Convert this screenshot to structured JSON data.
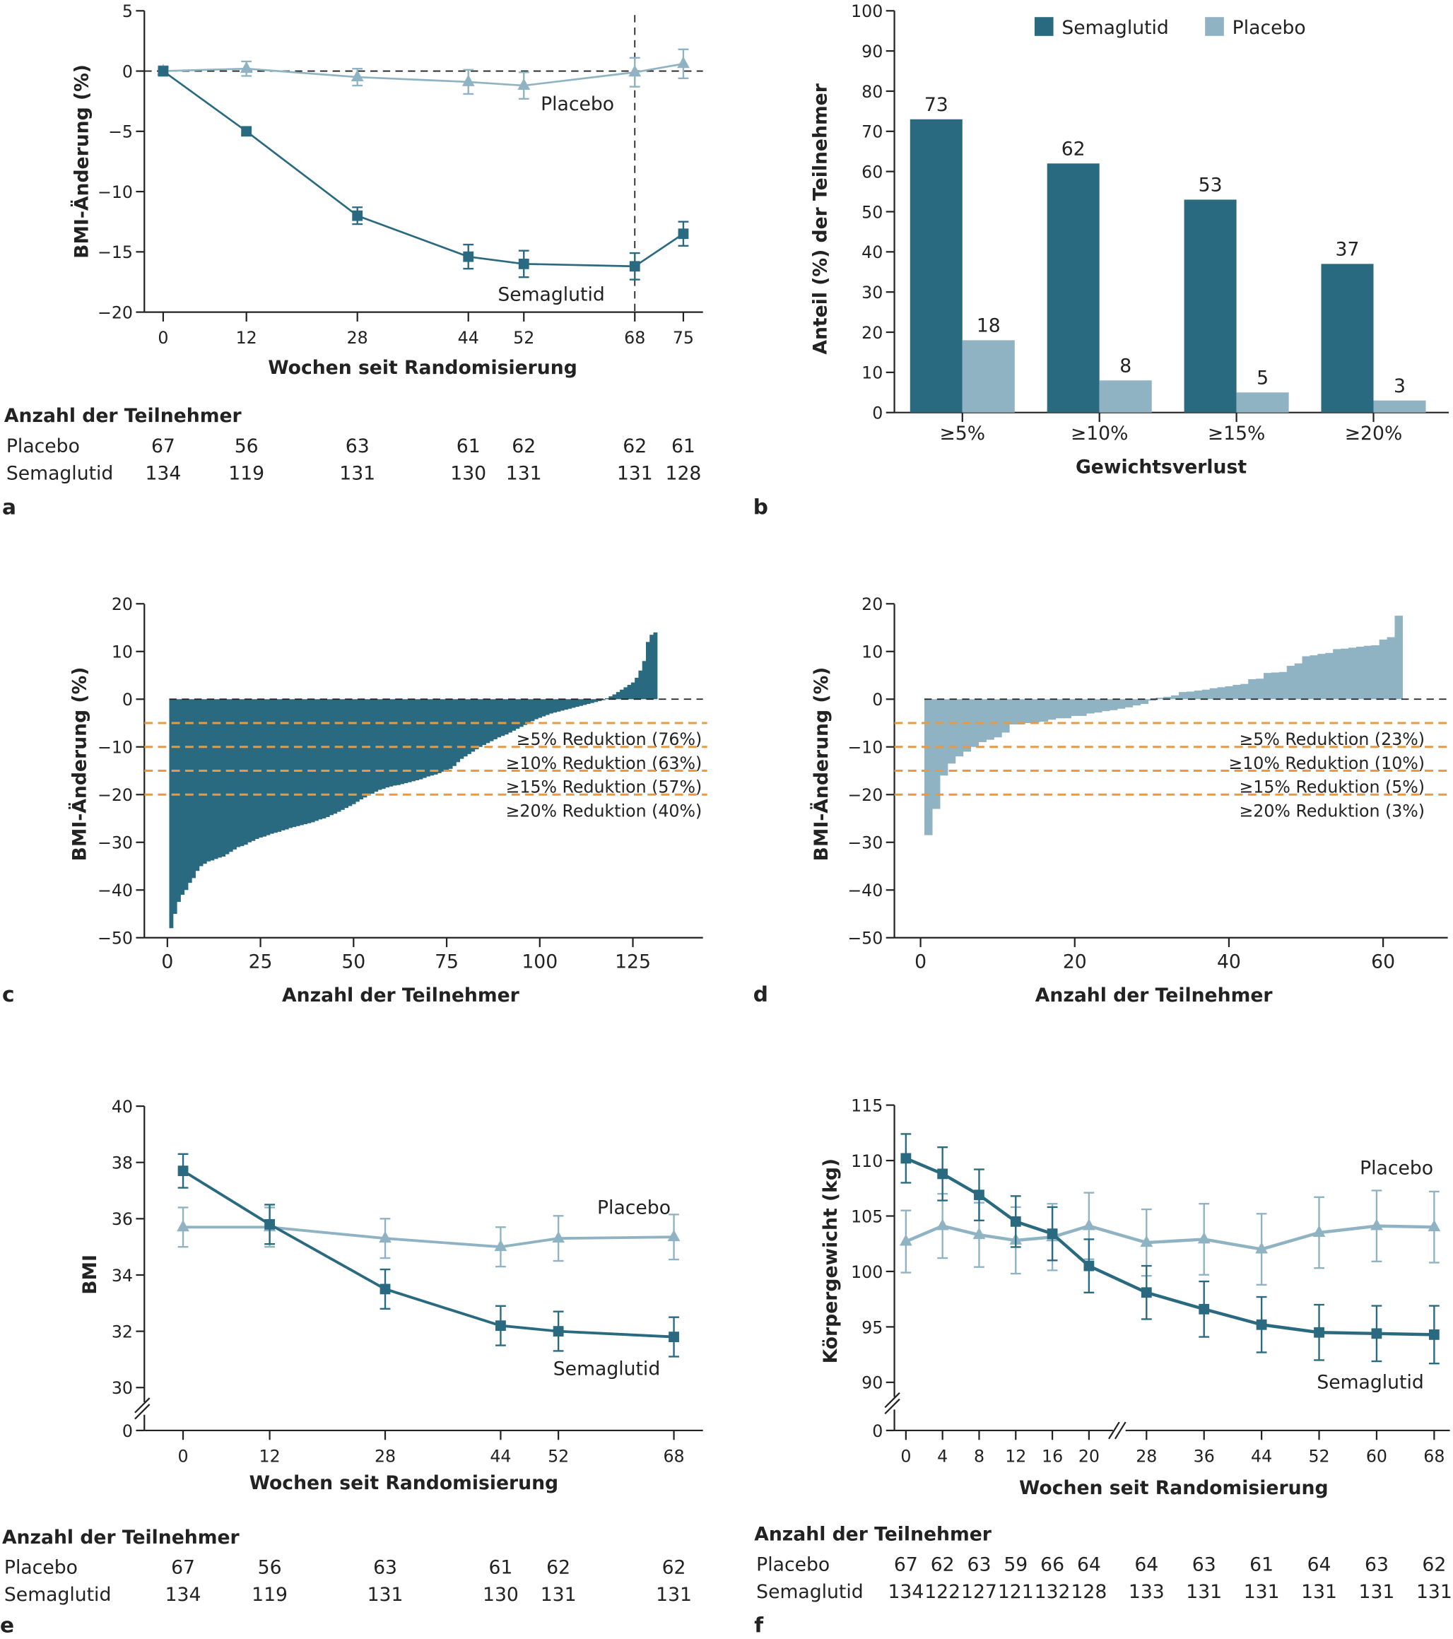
{
  "colors": {
    "semaglutid": "#2a6a80",
    "placebo": "#8fb3c3",
    "threshold": "#e89a3c",
    "axis": "#222222"
  },
  "chart_data": [
    {
      "panel": "a",
      "type": "line",
      "xlabel": "Wochen seit Randomisierung",
      "ylabel": "BMI-Änderung (%)",
      "x": [
        0,
        12,
        28,
        44,
        52,
        68,
        75
      ],
      "ylim": [
        -20,
        5
      ],
      "y_ticks": [
        5,
        0,
        -5,
        -10,
        -15,
        -20
      ],
      "y_tick_labels": [
        "5",
        "0",
        "−5",
        "−10",
        "−15",
        "−20"
      ],
      "reference_lines": {
        "y": 0,
        "x": 68
      },
      "series": [
        {
          "name": "Placebo",
          "marker": "triangle",
          "values": [
            0,
            0.2,
            -0.5,
            -0.9,
            -1.2,
            -0.1,
            0.6
          ],
          "error": [
            0.4,
            0.6,
            0.7,
            1.0,
            1.1,
            1.2,
            1.2
          ]
        },
        {
          "name": "Semaglutid",
          "marker": "square",
          "values": [
            0,
            -5,
            -12,
            -15.4,
            -16,
            -16.2,
            -13.5
          ],
          "error": [
            0.3,
            0.3,
            0.7,
            1.0,
            1.1,
            1.1,
            1.0
          ]
        }
      ]
    },
    {
      "panel": "b",
      "type": "bar",
      "xlabel": "Gewichtsverlust",
      "ylabel": "Anteil (%) der Teilnehmer",
      "categories": [
        "≥5%",
        "≥10%",
        "≥15%",
        "≥20%"
      ],
      "ylim": [
        0,
        100
      ],
      "y_ticks": [
        0,
        10,
        20,
        30,
        40,
        50,
        60,
        70,
        80,
        90,
        100
      ],
      "legend": "top",
      "series": [
        {
          "name": "Semaglutid",
          "values": [
            73,
            62,
            53,
            37
          ]
        },
        {
          "name": "Placebo",
          "values": [
            18,
            8,
            5,
            3
          ]
        }
      ]
    },
    {
      "panel": "c",
      "type": "bar",
      "subtype": "waterfall",
      "group": "Semaglutid",
      "xlabel": "Anzahl der Teilnehmer",
      "ylabel": "BMI-Änderung (%)",
      "xlim": [
        0,
        140
      ],
      "x_ticks": [
        0,
        25,
        50,
        75,
        100,
        125
      ],
      "ylim": [
        -50,
        20
      ],
      "y_ticks": [
        20,
        10,
        0,
        -10,
        -20,
        -30,
        -40,
        -50
      ],
      "y_tick_labels": [
        "20",
        "10",
        "0",
        "−10",
        "−20",
        "−30",
        "−40",
        "−50"
      ],
      "thresholds": [
        {
          "y": -5,
          "label": "≥5% Reduktion (76%)"
        },
        {
          "y": -10,
          "label": "≥10% Reduktion (63%)"
        },
        {
          "y": -15,
          "label": "≥15% Reduktion (57%)"
        },
        {
          "y": -20,
          "label": "≥20% Reduktion (40%)"
        }
      ],
      "values": [
        -48,
        -45,
        -42.5,
        -41,
        -40,
        -38.5,
        -37.5,
        -36,
        -35,
        -34.5,
        -34,
        -33.8,
        -33.5,
        -33.2,
        -33,
        -32.5,
        -32,
        -31.5,
        -31,
        -30.8,
        -30.5,
        -30,
        -29.7,
        -29.3,
        -29,
        -28.8,
        -28.5,
        -28.2,
        -28,
        -27.8,
        -27.5,
        -27.3,
        -27,
        -26.8,
        -26.6,
        -26.4,
        -26.2,
        -26,
        -25.8,
        -25.5,
        -25.2,
        -25,
        -24.7,
        -24.3,
        -24,
        -23.6,
        -23.2,
        -22.8,
        -22.4,
        -22,
        -21.5,
        -21,
        -20.6,
        -20.2,
        -19.8,
        -19.4,
        -19,
        -18.8,
        -18.5,
        -18.3,
        -18.1,
        -18,
        -17.8,
        -17.6,
        -17.4,
        -17.2,
        -17,
        -16.8,
        -16.5,
        -16.2,
        -16,
        -15.8,
        -15.5,
        -15.2,
        -15,
        -14.6,
        -14,
        -13.2,
        -12.5,
        -12,
        -11.5,
        -11,
        -10.5,
        -10,
        -9.6,
        -9.2,
        -8.8,
        -8.4,
        -8,
        -7.7,
        -7.4,
        -7,
        -6.6,
        -6.2,
        -5.8,
        -5.4,
        -5,
        -4.6,
        -4.2,
        -3.9,
        -3.6,
        -3.3,
        -3,
        -2.8,
        -2.6,
        -2.4,
        -2.2,
        -2,
        -1.8,
        -1.6,
        -1.4,
        -1.2,
        -1,
        -0.8,
        -0.6,
        -0.4,
        -0.2,
        0.2,
        0.6,
        1,
        1.5,
        2,
        2.5,
        3,
        3.5,
        4.5,
        6,
        8,
        12,
        13.5,
        14
      ]
    },
    {
      "panel": "d",
      "type": "bar",
      "subtype": "waterfall",
      "group": "Placebo",
      "xlabel": "Anzahl der Teilnehmer",
      "ylabel": "BMI-Änderung (%)",
      "xlim": [
        0,
        69
      ],
      "x_ticks": [
        0,
        20,
        40,
        60
      ],
      "ylim": [
        -50,
        20
      ],
      "y_ticks": [
        20,
        10,
        0,
        -10,
        -20,
        -30,
        -40,
        -50
      ],
      "y_tick_labels": [
        "20",
        "10",
        "0",
        "−10",
        "−20",
        "−30",
        "−40",
        "−50"
      ],
      "thresholds": [
        {
          "y": -5,
          "label": "≥5% Reduktion (23%)"
        },
        {
          "y": -10,
          "label": "≥10% Reduktion (10%)"
        },
        {
          "y": -15,
          "label": "≥15% Reduktion (5%)"
        },
        {
          "y": -20,
          "label": "≥20% Reduktion (3%)"
        }
      ],
      "values": [
        -28.5,
        -23,
        -16,
        -13.5,
        -12,
        -11,
        -10,
        -9,
        -8.5,
        -8,
        -7,
        -5.3,
        -5.3,
        -5,
        -4.8,
        -4.7,
        -4.3,
        -4,
        -4,
        -3.5,
        -3.5,
        -3,
        -2.8,
        -2.5,
        -2.3,
        -2,
        -1.7,
        -1.3,
        -1,
        -0.3,
        0.3,
        0.5,
        0.8,
        1.5,
        1.6,
        1.8,
        2,
        2.3,
        2.5,
        2.7,
        3,
        3.2,
        4.2,
        4.3,
        5.5,
        5.6,
        5.7,
        7,
        7.5,
        9,
        9.2,
        9.5,
        9.7,
        10.5,
        10.6,
        10.8,
        11,
        11.2,
        11.3,
        12.5,
        13,
        17.5
      ]
    },
    {
      "panel": "e",
      "type": "line",
      "xlabel": "Wochen seit Randomisierung",
      "ylabel": "BMI",
      "x": [
        0,
        12,
        28,
        44,
        52,
        68
      ],
      "ylim": [
        30,
        40
      ],
      "y_ticks": [
        30,
        32,
        34,
        36,
        38,
        40
      ],
      "y_axis_break": true,
      "y_break_label": "0",
      "series": [
        {
          "name": "Placebo",
          "marker": "triangle",
          "values": [
            35.7,
            35.7,
            35.3,
            35.0,
            35.3,
            35.35
          ],
          "error": [
            0.7,
            0.7,
            0.7,
            0.7,
            0.8,
            0.8
          ]
        },
        {
          "name": "Semaglutid",
          "marker": "square",
          "values": [
            37.7,
            35.8,
            33.5,
            32.2,
            32.0,
            31.8
          ],
          "error": [
            0.6,
            0.7,
            0.7,
            0.7,
            0.7,
            0.7
          ]
        }
      ]
    },
    {
      "panel": "f",
      "type": "line",
      "xlabel": "Wochen seit Randomisierung",
      "ylabel": "Körpergewicht (kg)",
      "x": [
        0,
        4,
        8,
        12,
        16,
        20,
        28,
        36,
        44,
        52,
        60,
        68
      ],
      "x_axis_break_between": [
        20,
        28
      ],
      "ylim": [
        90,
        115
      ],
      "y_ticks": [
        90,
        95,
        100,
        105,
        110,
        115
      ],
      "y_axis_break": true,
      "y_break_label": "0",
      "series": [
        {
          "name": "Placebo",
          "marker": "triangle",
          "values": [
            102.7,
            104.1,
            103.3,
            102.8,
            103.1,
            104.1,
            102.6,
            102.9,
            102.0,
            103.5,
            104.1,
            104.0
          ],
          "error": [
            2.8,
            2.9,
            2.9,
            3.0,
            3.0,
            3.0,
            3.0,
            3.2,
            3.2,
            3.2,
            3.2,
            3.2
          ]
        },
        {
          "name": "Semaglutid",
          "marker": "square",
          "values": [
            110.2,
            108.8,
            106.9,
            104.5,
            103.4,
            100.5,
            98.1,
            96.6,
            95.2,
            94.5,
            94.4,
            94.3
          ],
          "error": [
            2.2,
            2.4,
            2.3,
            2.3,
            2.4,
            2.4,
            2.4,
            2.5,
            2.5,
            2.5,
            2.5,
            2.6
          ]
        }
      ]
    }
  ],
  "participants": {
    "a": {
      "title": "Anzahl der Teilnehmer",
      "rows": [
        {
          "label": "Placebo",
          "values": [
            "67",
            "56",
            "63",
            "61",
            "62",
            "62",
            "61"
          ]
        },
        {
          "label": "Semaglutid",
          "values": [
            "134",
            "119",
            "131",
            "130",
            "131",
            "131",
            "128"
          ]
        }
      ]
    },
    "e": {
      "title": "Anzahl der Teilnehmer",
      "rows": [
        {
          "label": "Placebo",
          "values": [
            "67",
            "56",
            "63",
            "61",
            "62",
            "62"
          ]
        },
        {
          "label": "Semaglutid",
          "values": [
            "134",
            "119",
            "131",
            "130",
            "131",
            "131"
          ]
        }
      ]
    },
    "f": {
      "title": "Anzahl der Teilnehmer",
      "rows": [
        {
          "label": "Placebo",
          "values": [
            "67",
            "62",
            "63",
            "59",
            "66",
            "64",
            "64",
            "63",
            "61",
            "64",
            "63",
            "62"
          ]
        },
        {
          "label": "Semaglutid",
          "values": [
            "134",
            "122",
            "127",
            "121",
            "132",
            "128",
            "133",
            "131",
            "131",
            "131",
            "131",
            "131"
          ]
        }
      ]
    }
  },
  "panel_letters": [
    "a",
    "b",
    "c",
    "d",
    "e",
    "f"
  ]
}
